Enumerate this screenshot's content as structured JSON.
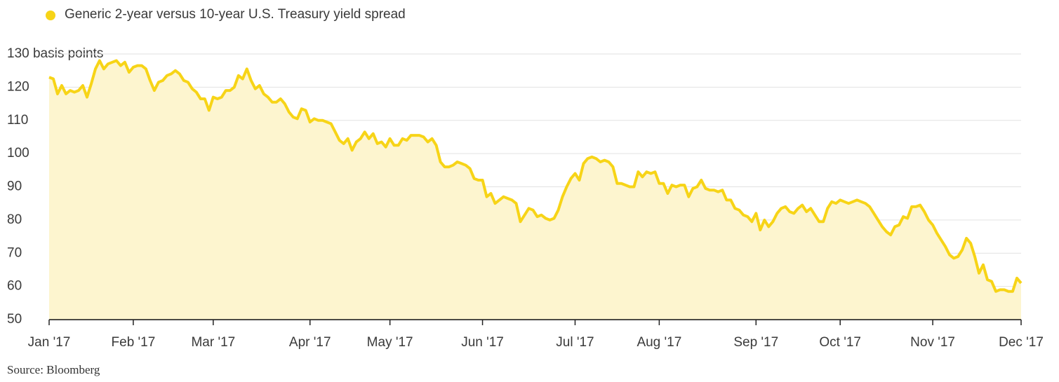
{
  "chart_data": {
    "type": "line",
    "series": [
      {
        "name": "Generic 2-year versus 10-year U.S. Treasury yield spread",
        "color": "#f7d417",
        "fill": "#fdf5cf",
        "values": [
          123,
          122.5,
          118,
          120.5,
          118,
          119,
          118.5,
          119,
          120.5,
          117,
          121,
          125.5,
          128,
          125.5,
          127,
          127.5,
          128,
          126.5,
          127.5,
          124.5,
          126,
          126.5,
          126.5,
          125.5,
          122,
          119,
          121.5,
          122,
          123.5,
          124,
          125,
          124,
          122,
          121.5,
          119.5,
          118.5,
          116.5,
          116.5,
          113,
          117,
          116.5,
          117,
          119,
          119,
          120,
          123.5,
          122.5,
          125.5,
          122,
          119.5,
          120.5,
          118,
          117,
          115.5,
          115.5,
          116.5,
          115,
          112.5,
          111,
          110.5,
          113.5,
          113,
          109.5,
          110.5,
          110,
          110,
          109.5,
          109,
          106.5,
          104,
          103,
          104.5,
          101,
          103.5,
          104.5,
          106.5,
          104.5,
          106,
          103,
          103.5,
          102,
          104.5,
          102.5,
          102.5,
          104.5,
          104,
          105.5,
          105.5,
          105.5,
          105,
          103.5,
          104.5,
          102.5,
          97.5,
          96,
          96,
          96.5,
          97.5,
          97,
          96.5,
          95.5,
          92.5,
          92,
          92,
          87,
          88,
          85,
          86,
          87,
          86.5,
          86,
          85,
          79.5,
          81.5,
          83.5,
          83,
          81,
          81.5,
          80.5,
          80,
          80.5,
          83,
          87,
          90,
          92.5,
          94,
          92,
          97,
          98.5,
          99,
          98.5,
          97.5,
          98,
          97.5,
          96,
          91,
          91,
          90.5,
          90,
          90,
          94.5,
          93,
          94.5,
          94,
          94.5,
          91,
          91,
          88,
          90.5,
          90,
          90.5,
          90.5,
          87,
          89.5,
          90,
          92,
          89.5,
          89,
          89,
          88.5,
          89,
          86,
          86,
          83.5,
          83,
          81.5,
          81,
          79.5,
          82,
          77,
          80,
          78,
          79.5,
          82,
          83.5,
          84,
          82.5,
          82,
          83.5,
          84.5,
          82.5,
          83.5,
          81.5,
          79.5,
          79.5,
          83.5,
          85.5,
          85,
          86,
          85.5,
          85,
          85.5,
          86,
          85.5,
          85,
          84,
          82,
          80,
          78,
          76.5,
          75.5,
          78,
          78.5,
          81,
          80.5,
          84,
          84,
          84.5,
          82.5,
          80,
          78.5,
          76,
          74,
          72,
          69.5,
          68.5,
          69,
          71,
          74.5,
          73,
          69,
          64,
          66.5,
          62,
          61.5,
          58.5,
          59,
          59,
          58.5,
          58.5,
          62.5,
          61
        ]
      }
    ],
    "categories": [
      "Jan '17",
      null,
      null,
      null,
      null,
      null,
      null,
      null,
      null,
      null,
      null,
      null,
      null,
      null,
      null,
      null,
      null,
      null,
      null,
      null,
      "Feb '17",
      null,
      null,
      null,
      null,
      null,
      null,
      null,
      null,
      null,
      null,
      null,
      null,
      null,
      null,
      null,
      null,
      null,
      null,
      "Mar '17",
      null,
      null,
      null,
      null,
      null,
      null,
      null,
      null,
      null,
      null,
      null,
      null,
      null,
      null,
      null,
      null,
      null,
      null,
      null,
      null,
      null,
      null,
      "Apr '17",
      null,
      null,
      null,
      null,
      null,
      null,
      null,
      null,
      null,
      null,
      null,
      null,
      null,
      null,
      null,
      null,
      null,
      null,
      "May '17",
      null,
      null,
      null,
      null,
      null,
      null,
      null,
      null,
      null,
      null,
      null,
      null,
      null,
      null,
      null,
      null,
      null,
      null,
      null,
      null,
      null,
      "Jun '17",
      null,
      null,
      null,
      null,
      null,
      null,
      null,
      null,
      null,
      null,
      null,
      null,
      null,
      null,
      null,
      null,
      null,
      null,
      null,
      null,
      null,
      "Jul '17",
      null,
      null,
      null,
      null,
      null,
      null,
      null,
      null,
      null,
      null,
      null,
      null,
      null,
      null,
      null,
      null,
      null,
      null,
      null,
      "Aug '17",
      null,
      null,
      null,
      null,
      null,
      null,
      null,
      null,
      null,
      null,
      null,
      null,
      null,
      null,
      null,
      null,
      null,
      null,
      null,
      null,
      null,
      null,
      "Sep '17",
      null,
      null,
      null,
      null,
      null,
      null,
      null,
      null,
      null,
      null,
      null,
      null,
      null,
      null,
      null,
      null,
      null,
      null,
      null,
      "Oct '17",
      null,
      null,
      null,
      null,
      null,
      null,
      null,
      null,
      null,
      null,
      null,
      null,
      null,
      null,
      null,
      null,
      null,
      null,
      null,
      null,
      null,
      "Nov '17",
      null,
      null,
      null,
      null,
      null,
      null,
      null,
      null,
      null,
      null,
      null,
      null,
      null,
      null,
      null,
      null,
      null,
      null,
      null,
      null,
      "Dec '17"
    ],
    "ylim": [
      50,
      130
    ],
    "yticks": [
      50,
      60,
      70,
      80,
      90,
      100,
      110,
      120,
      {
        "value": 130,
        "label": "130 basis points"
      }
    ],
    "grid": true,
    "legend": "top-left",
    "source": "Source: Bloomberg"
  }
}
